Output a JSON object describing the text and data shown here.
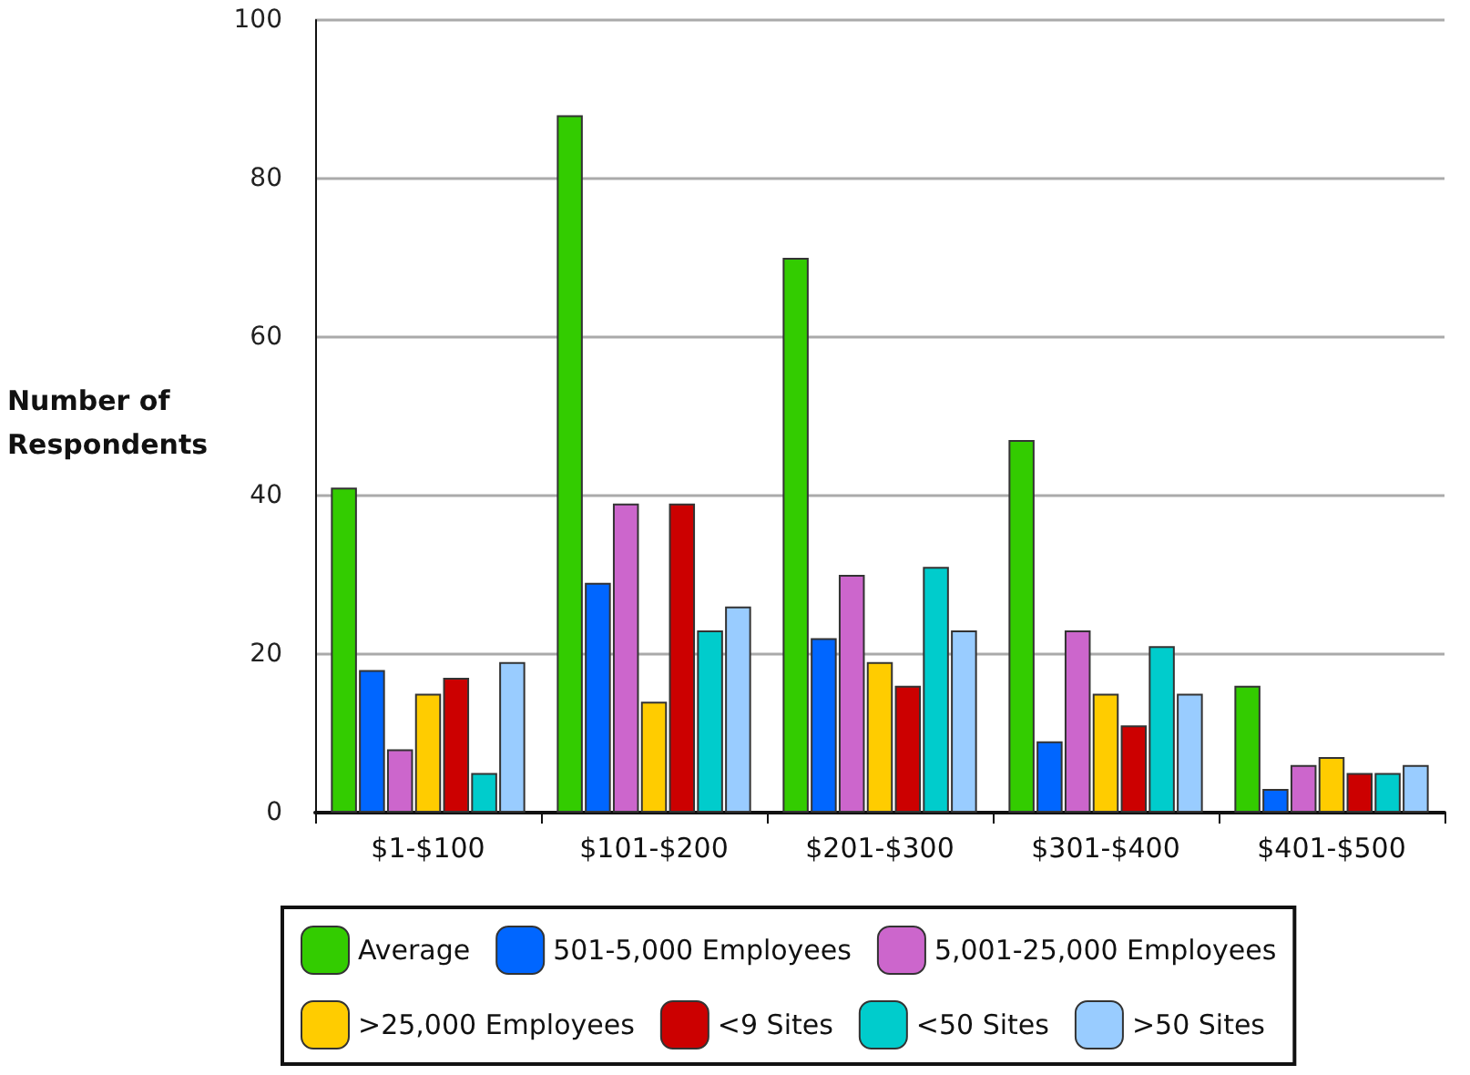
{
  "chart_data": {
    "type": "bar",
    "ylabel": "Number of\nRespondents",
    "categories": [
      "$1-$100",
      "$101-$200",
      "$201-$300",
      "$301-$400",
      "$401-$500"
    ],
    "series": [
      {
        "name": "Average",
        "color": "#33cc00",
        "values": [
          41,
          88,
          70,
          47,
          16
        ]
      },
      {
        "name": "501-5,000 Employees",
        "color": "#0066ff",
        "values": [
          18,
          29,
          22,
          9,
          3
        ]
      },
      {
        "name": "5,001-25,000 Employees",
        "color": "#cc66cc",
        "values": [
          8,
          39,
          30,
          23,
          6
        ]
      },
      {
        "name": ">25,000 Employees",
        "color": "#ffcc00",
        "values": [
          15,
          14,
          19,
          15,
          7
        ]
      },
      {
        "name": "<9 Sites",
        "color": "#cc0000",
        "values": [
          17,
          39,
          16,
          11,
          5
        ]
      },
      {
        "name": "<50 Sites",
        "color": "#00cccc",
        "values": [
          5,
          23,
          31,
          21,
          5
        ]
      },
      {
        "name": ">50 Sites",
        "color": "#99ccff",
        "values": [
          19,
          26,
          23,
          15,
          6
        ]
      }
    ],
    "ylim": [
      0,
      100
    ],
    "yticks": [
      0,
      20,
      40,
      60,
      80,
      100
    ],
    "grid": "y",
    "legend": "bottom"
  }
}
